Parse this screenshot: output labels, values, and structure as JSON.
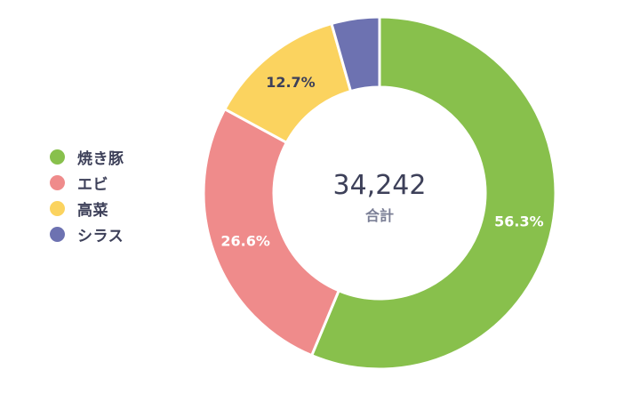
{
  "chart_data": {
    "type": "pie",
    "total": "34,242",
    "total_label": "合計",
    "categories": [
      "焼き豚",
      "エビ",
      "高菜",
      "シラス"
    ],
    "values": [
      56.3,
      26.6,
      12.7,
      4.4
    ],
    "data_labels": [
      "56.3%",
      "26.6%",
      "12.7%",
      ""
    ],
    "colors": [
      "#88c04c",
      "#ef8b8b",
      "#fbd35f",
      "#6d72b1"
    ],
    "legend_position": "left",
    "label_color": "#ffffff",
    "label_color_dark": "#3d4059"
  }
}
